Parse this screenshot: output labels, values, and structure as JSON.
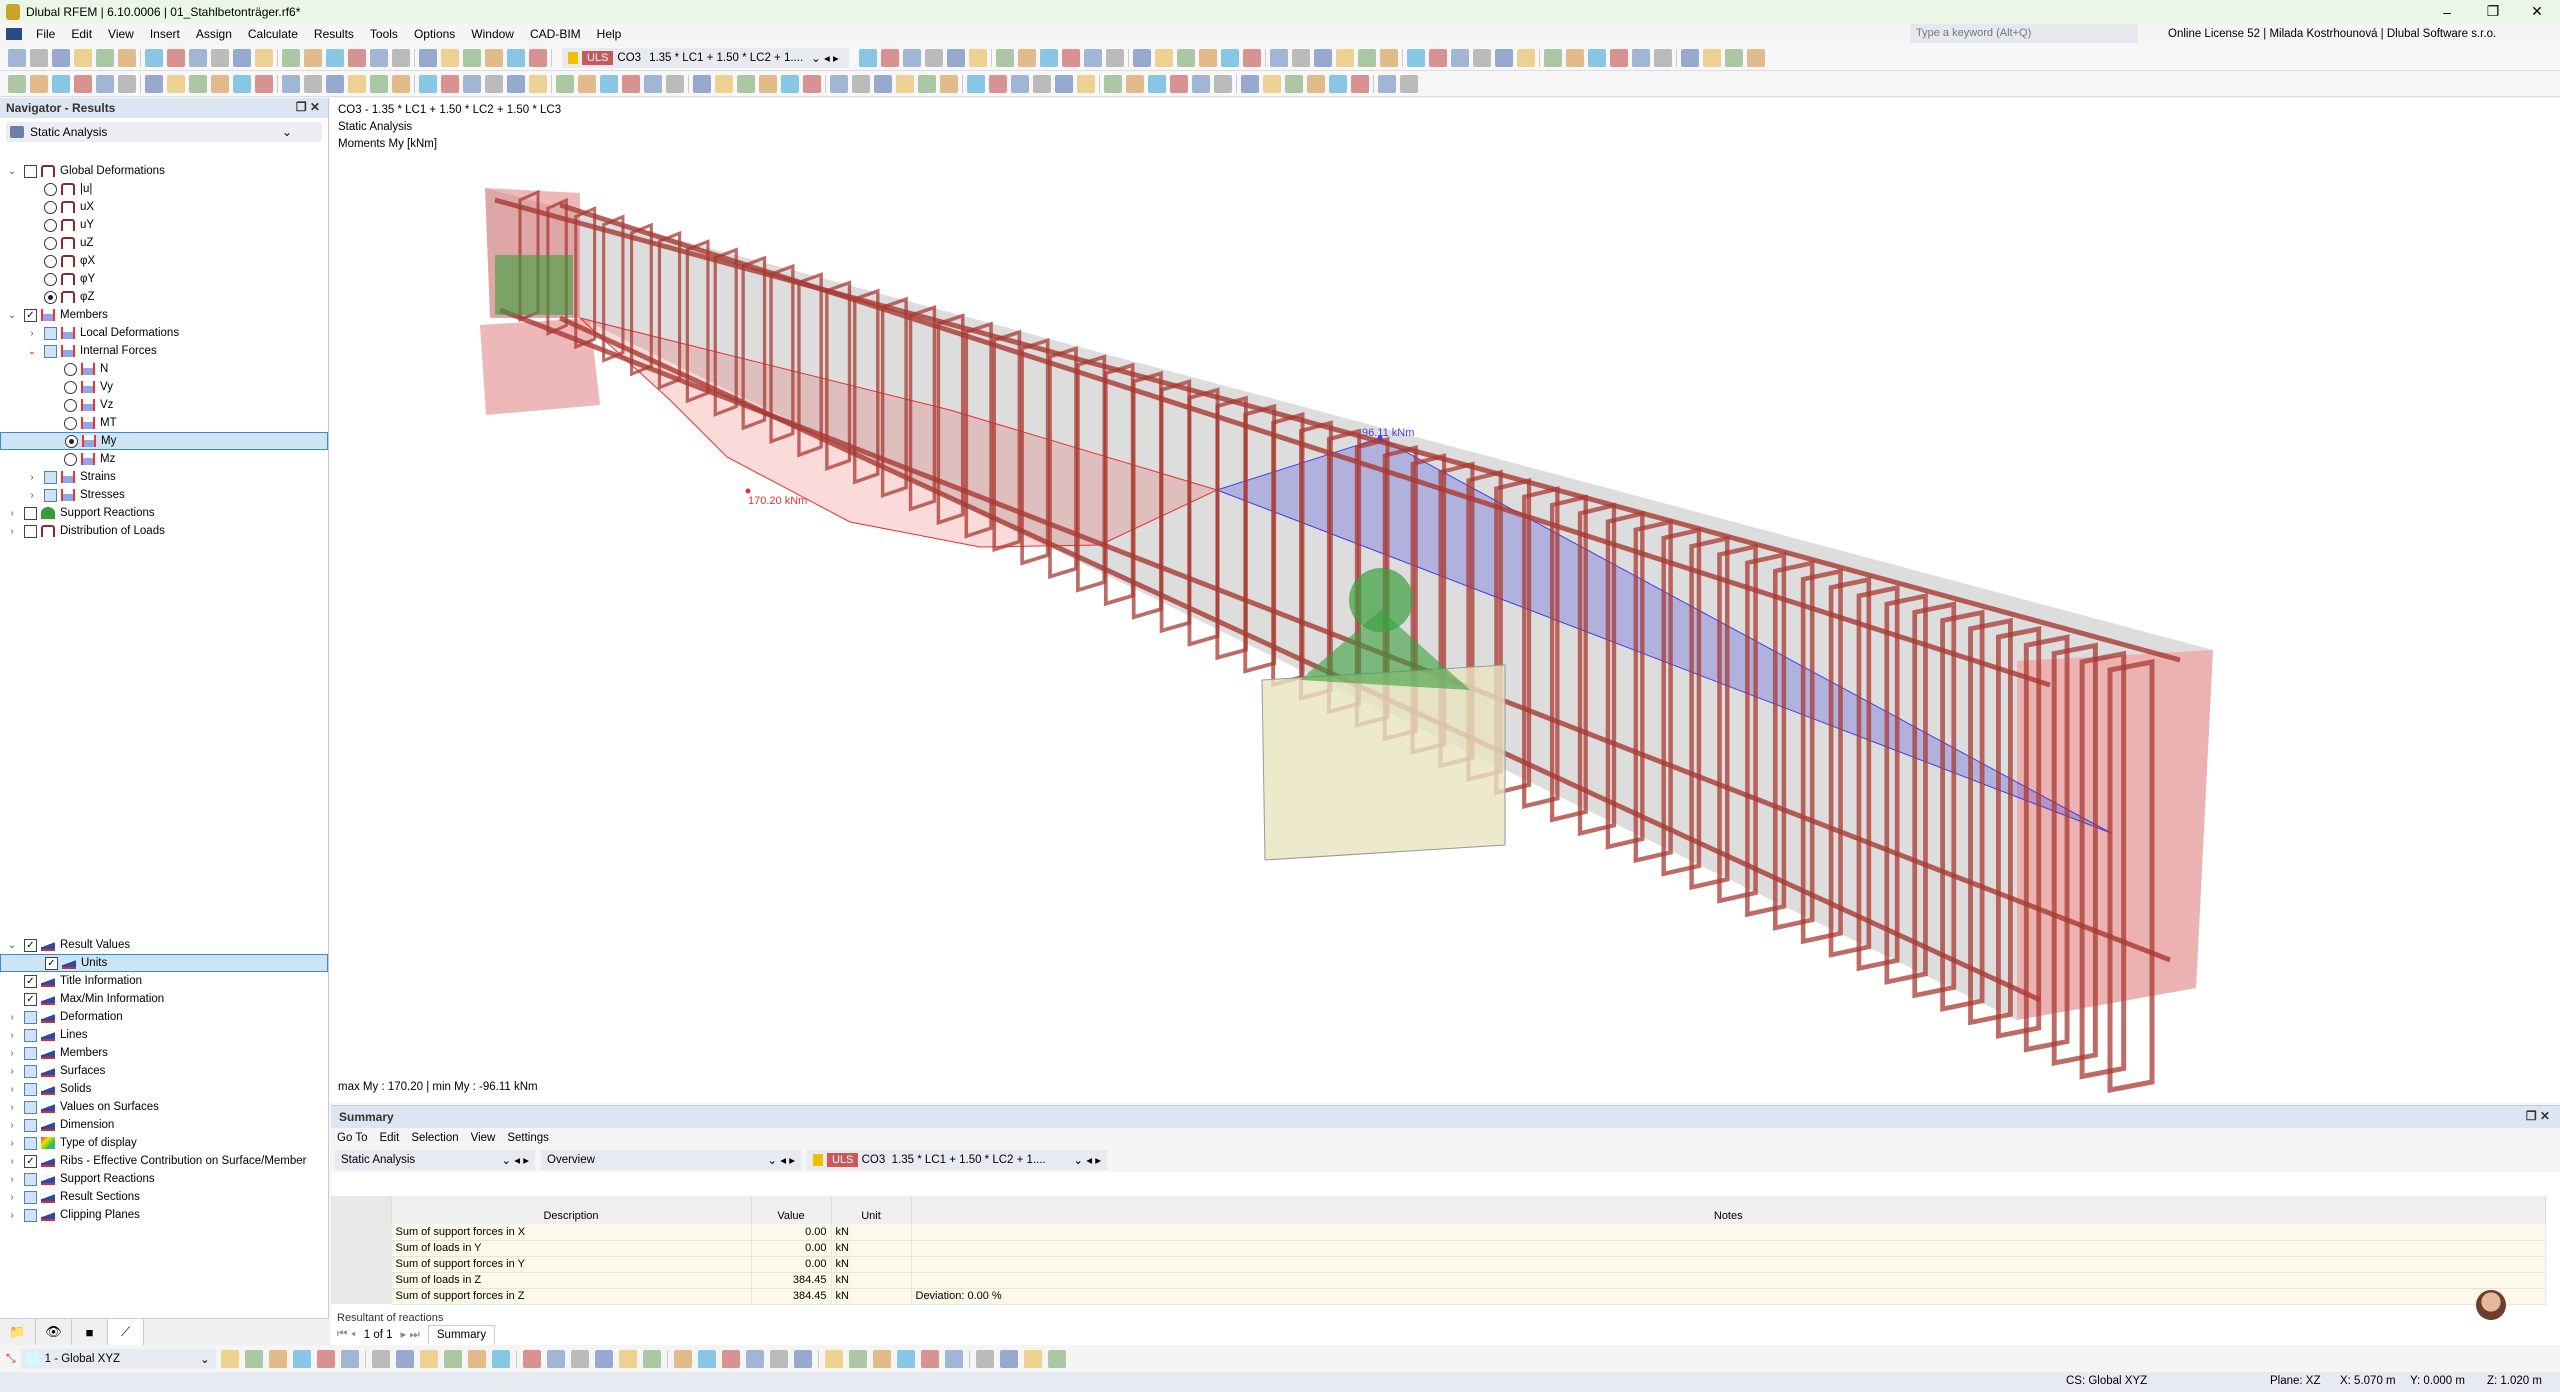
{
  "app": {
    "title": "Dlubal RFEM | 6.10.0006 | 01_Stahlbetonträger.rf6*",
    "search_placeholder": "Type a keyword (Alt+Q)",
    "license": "Online License 52 | Milada Kostrhounová | Dlubal Software s.r.o."
  },
  "menu": [
    "File",
    "Edit",
    "View",
    "Insert",
    "Assign",
    "Calculate",
    "Results",
    "Tools",
    "Options",
    "Window",
    "CAD-BIM",
    "Help"
  ],
  "toolbar": {
    "uls_label": "ULS",
    "combo_id": "CO3",
    "combo_formula": "1.35 * LC1 + 1.50 * LC2 + 1...."
  },
  "navigator": {
    "title": "Navigator - Results",
    "analysis": "Static Analysis",
    "tree": [
      {
        "label": "Global Deformations",
        "level": 0,
        "ctl": "cb",
        "chev": "v",
        "icon": "def"
      },
      {
        "label": "|u|",
        "level": 1,
        "ctl": "rad",
        "icon": "def"
      },
      {
        "label": "uX",
        "level": 1,
        "ctl": "rad",
        "icon": "def"
      },
      {
        "label": "uY",
        "level": 1,
        "ctl": "rad",
        "icon": "def"
      },
      {
        "label": "uZ",
        "level": 1,
        "ctl": "rad",
        "icon": "def"
      },
      {
        "label": "φX",
        "level": 1,
        "ctl": "rad",
        "icon": "def"
      },
      {
        "label": "φY",
        "level": 1,
        "ctl": "rad",
        "icon": "def"
      },
      {
        "label": "φZ",
        "level": 1,
        "ctl": "rad",
        "on": true,
        "icon": "def"
      },
      {
        "label": "Members",
        "level": 0,
        "ctl": "cb",
        "checked": true,
        "chev": "v",
        "icon": "mem"
      },
      {
        "label": "Local Deformations",
        "level": 1,
        "ctl": "cbb",
        "chev": ">",
        "icon": "mem"
      },
      {
        "label": "Internal Forces",
        "level": 1,
        "ctl": "cbb",
        "chev": "v",
        "icon": "mem"
      },
      {
        "label": "N",
        "level": 2,
        "ctl": "rad",
        "icon": "mem"
      },
      {
        "label": "Vy",
        "level": 2,
        "ctl": "rad",
        "icon": "mem"
      },
      {
        "label": "Vz",
        "level": 2,
        "ctl": "rad",
        "icon": "mem"
      },
      {
        "label": "MT",
        "level": 2,
        "ctl": "rad",
        "icon": "mem"
      },
      {
        "label": "My",
        "level": 2,
        "ctl": "rad",
        "on": true,
        "selected": true,
        "icon": "mem"
      },
      {
        "label": "Mz",
        "level": 2,
        "ctl": "rad",
        "icon": "mem"
      },
      {
        "label": "Strains",
        "level": 1,
        "ctl": "cbb",
        "chev": ">",
        "icon": "mem"
      },
      {
        "label": "Stresses",
        "level": 1,
        "ctl": "cbb",
        "chev": ">",
        "icon": "mem"
      },
      {
        "label": "Support Reactions",
        "level": 0,
        "ctl": "cb",
        "chev": ">",
        "icon": "sup"
      },
      {
        "label": "Distribution of Loads",
        "level": 0,
        "ctl": "cb",
        "chev": ">",
        "icon": "def"
      }
    ],
    "display_tree": [
      {
        "label": "Result Values",
        "level": 0,
        "ctl": "cb",
        "checked": true,
        "chev": "v",
        "icon": "disp"
      },
      {
        "label": "Units",
        "level": 1,
        "ctl": "cb",
        "checked": true,
        "selected": true,
        "icon": "disp"
      },
      {
        "label": "Title Information",
        "level": 0,
        "ctl": "cb",
        "checked": true,
        "icon": "disp"
      },
      {
        "label": "Max/Min Information",
        "level": 0,
        "ctl": "cb",
        "checked": true,
        "icon": "disp"
      },
      {
        "label": "Deformation",
        "level": 0,
        "ctl": "cbb",
        "chev": ">",
        "icon": "disp"
      },
      {
        "label": "Lines",
        "level": 0,
        "ctl": "cbb",
        "chev": ">",
        "icon": "disp"
      },
      {
        "label": "Members",
        "level": 0,
        "ctl": "cbb",
        "chev": ">",
        "icon": "disp"
      },
      {
        "label": "Surfaces",
        "level": 0,
        "ctl": "cbb",
        "chev": ">",
        "icon": "disp"
      },
      {
        "label": "Solids",
        "level": 0,
        "ctl": "cbb",
        "chev": ">",
        "icon": "disp"
      },
      {
        "label": "Values on Surfaces",
        "level": 0,
        "ctl": "cbb",
        "chev": ">",
        "icon": "disp"
      },
      {
        "label": "Dimension",
        "level": 0,
        "ctl": "cbb",
        "chev": ">",
        "icon": "disp"
      },
      {
        "label": "Type of display",
        "level": 0,
        "ctl": "cbb",
        "chev": ">",
        "icon": "type"
      },
      {
        "label": "Ribs - Effective Contribution on Surface/Member",
        "level": 0,
        "ctl": "cb",
        "checked": true,
        "chev": ">",
        "icon": "disp"
      },
      {
        "label": "Support Reactions",
        "level": 0,
        "ctl": "cbb",
        "chev": ">",
        "icon": "disp"
      },
      {
        "label": "Result Sections",
        "level": 0,
        "ctl": "cbb",
        "chev": ">",
        "icon": "disp"
      },
      {
        "label": "Clipping Planes",
        "level": 0,
        "ctl": "cbb",
        "chev": ">",
        "icon": "disp"
      }
    ]
  },
  "view": {
    "line1": "CO3 - 1.35 * LC1 + 1.50 * LC2 + 1.50 * LC3",
    "line2": "Static Analysis",
    "line3": "Moments My [kNm]",
    "max_label": "170.20 kNm",
    "min_label": "96.11 kNm",
    "maxmin": "max My : 170.20 | min My : -96.11 kNm",
    "colors": {
      "positive": "#e83030",
      "negative": "#4040e0",
      "rebar": "#a83a32"
    }
  },
  "summary": {
    "title": "Summary",
    "menu": [
      "Go To",
      "Edit",
      "Selection",
      "View",
      "Settings"
    ],
    "analysis": "Static Analysis",
    "overview": "Overview",
    "uls": "ULS",
    "combo": "CO3",
    "formula": "1.35 * LC1 + 1.50 * LC2 + 1....",
    "columns": [
      "Description",
      "Value",
      "Unit",
      "Notes"
    ],
    "rows": [
      {
        "d": "Sum of support forces in X",
        "v": "0.00",
        "u": "kN",
        "n": ""
      },
      {
        "d": "Sum of loads in Y",
        "v": "0.00",
        "u": "kN",
        "n": ""
      },
      {
        "d": "Sum of support forces in Y",
        "v": "0.00",
        "u": "kN",
        "n": ""
      },
      {
        "d": "Sum of loads in Z",
        "v": "384.45",
        "u": "kN",
        "n": ""
      },
      {
        "d": "Sum of support forces in Z",
        "v": "384.45",
        "u": "kN",
        "n": "Deviation: 0.00 %"
      }
    ],
    "section": "Resultant of reactions",
    "page": "1 of 1",
    "tab": "Summary"
  },
  "bottom": {
    "cs_combo": "1 - Global XYZ"
  },
  "status": {
    "cs": "CS: Global XYZ",
    "plane": "Plane: XZ",
    "x": "X: 5.070 m",
    "y": "Y: 0.000 m",
    "z": "Z: 1.020 m"
  }
}
